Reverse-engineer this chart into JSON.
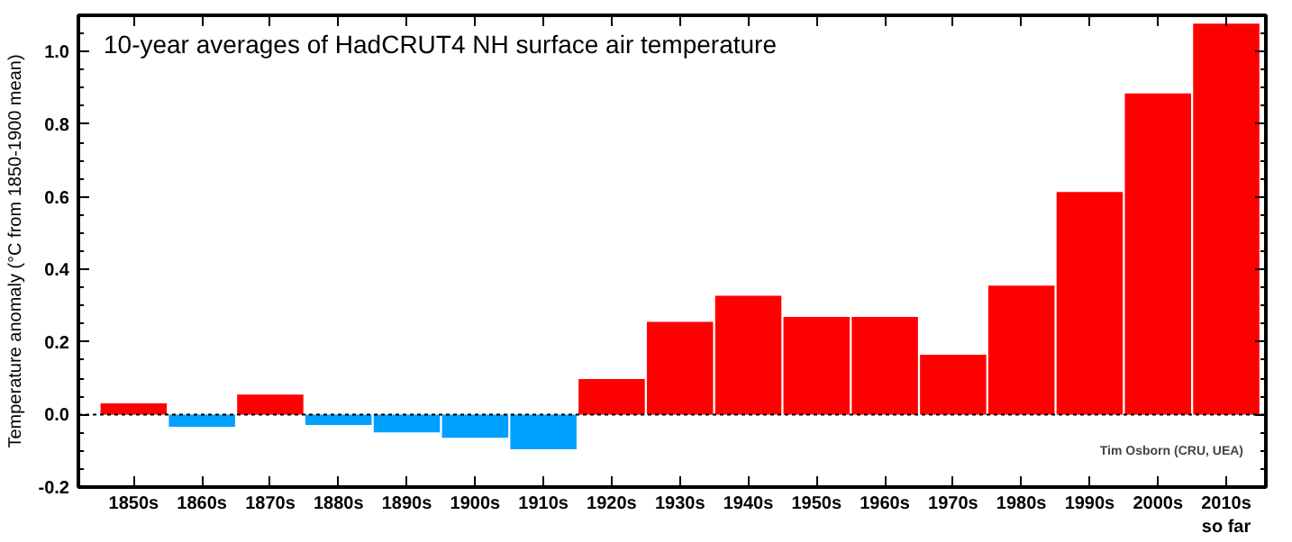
{
  "chart_data": {
    "type": "bar",
    "title": "10-year averages of HadCRUT4 NH surface air temperature",
    "ylabel": "Temperature anomaly (°C from 1850-1900 mean)",
    "categories": [
      "1850s",
      "1860s",
      "1870s",
      "1880s",
      "1890s",
      "1900s",
      "1910s",
      "1920s",
      "1930s",
      "1940s",
      "1950s",
      "1960s",
      "1970s",
      "1980s",
      "1990s",
      "2000s",
      "2010s\nso far"
    ],
    "values": [
      0.031,
      -0.034,
      0.055,
      -0.029,
      -0.049,
      -0.064,
      -0.096,
      0.098,
      0.255,
      0.327,
      0.269,
      0.269,
      0.165,
      0.355,
      0.613,
      0.885,
      1.077
    ],
    "colors": [
      "#ff0000",
      "#00a0ff",
      "#ff0000",
      "#00a0ff",
      "#00a0ff",
      "#00a0ff",
      "#00a0ff",
      "#ff0000",
      "#ff0000",
      "#ff0000",
      "#ff0000",
      "#ff0000",
      "#ff0000",
      "#ff0000",
      "#ff0000",
      "#ff0000",
      "#ff0000"
    ],
    "ylim": [
      -0.2,
      1.1
    ],
    "yticks": [
      {
        "value": -0.2,
        "label": "-0.2"
      },
      {
        "value": 0,
        "label": "0.0"
      },
      {
        "value": 0.2,
        "label": "0.2"
      },
      {
        "value": 0.4,
        "label": "0.4"
      },
      {
        "value": 0.6,
        "label": "0.6"
      },
      {
        "value": 0.8,
        "label": "0.8"
      },
      {
        "value": 1.0,
        "label": "1.0"
      }
    ],
    "ref_lines": [
      {
        "axis": "y",
        "value": 0,
        "label": null,
        "color": "#000000",
        "line_style": "dotted"
      }
    ],
    "annotations": [
      "Tim Osborn (CRU, UEA)"
    ],
    "grid": false
  }
}
